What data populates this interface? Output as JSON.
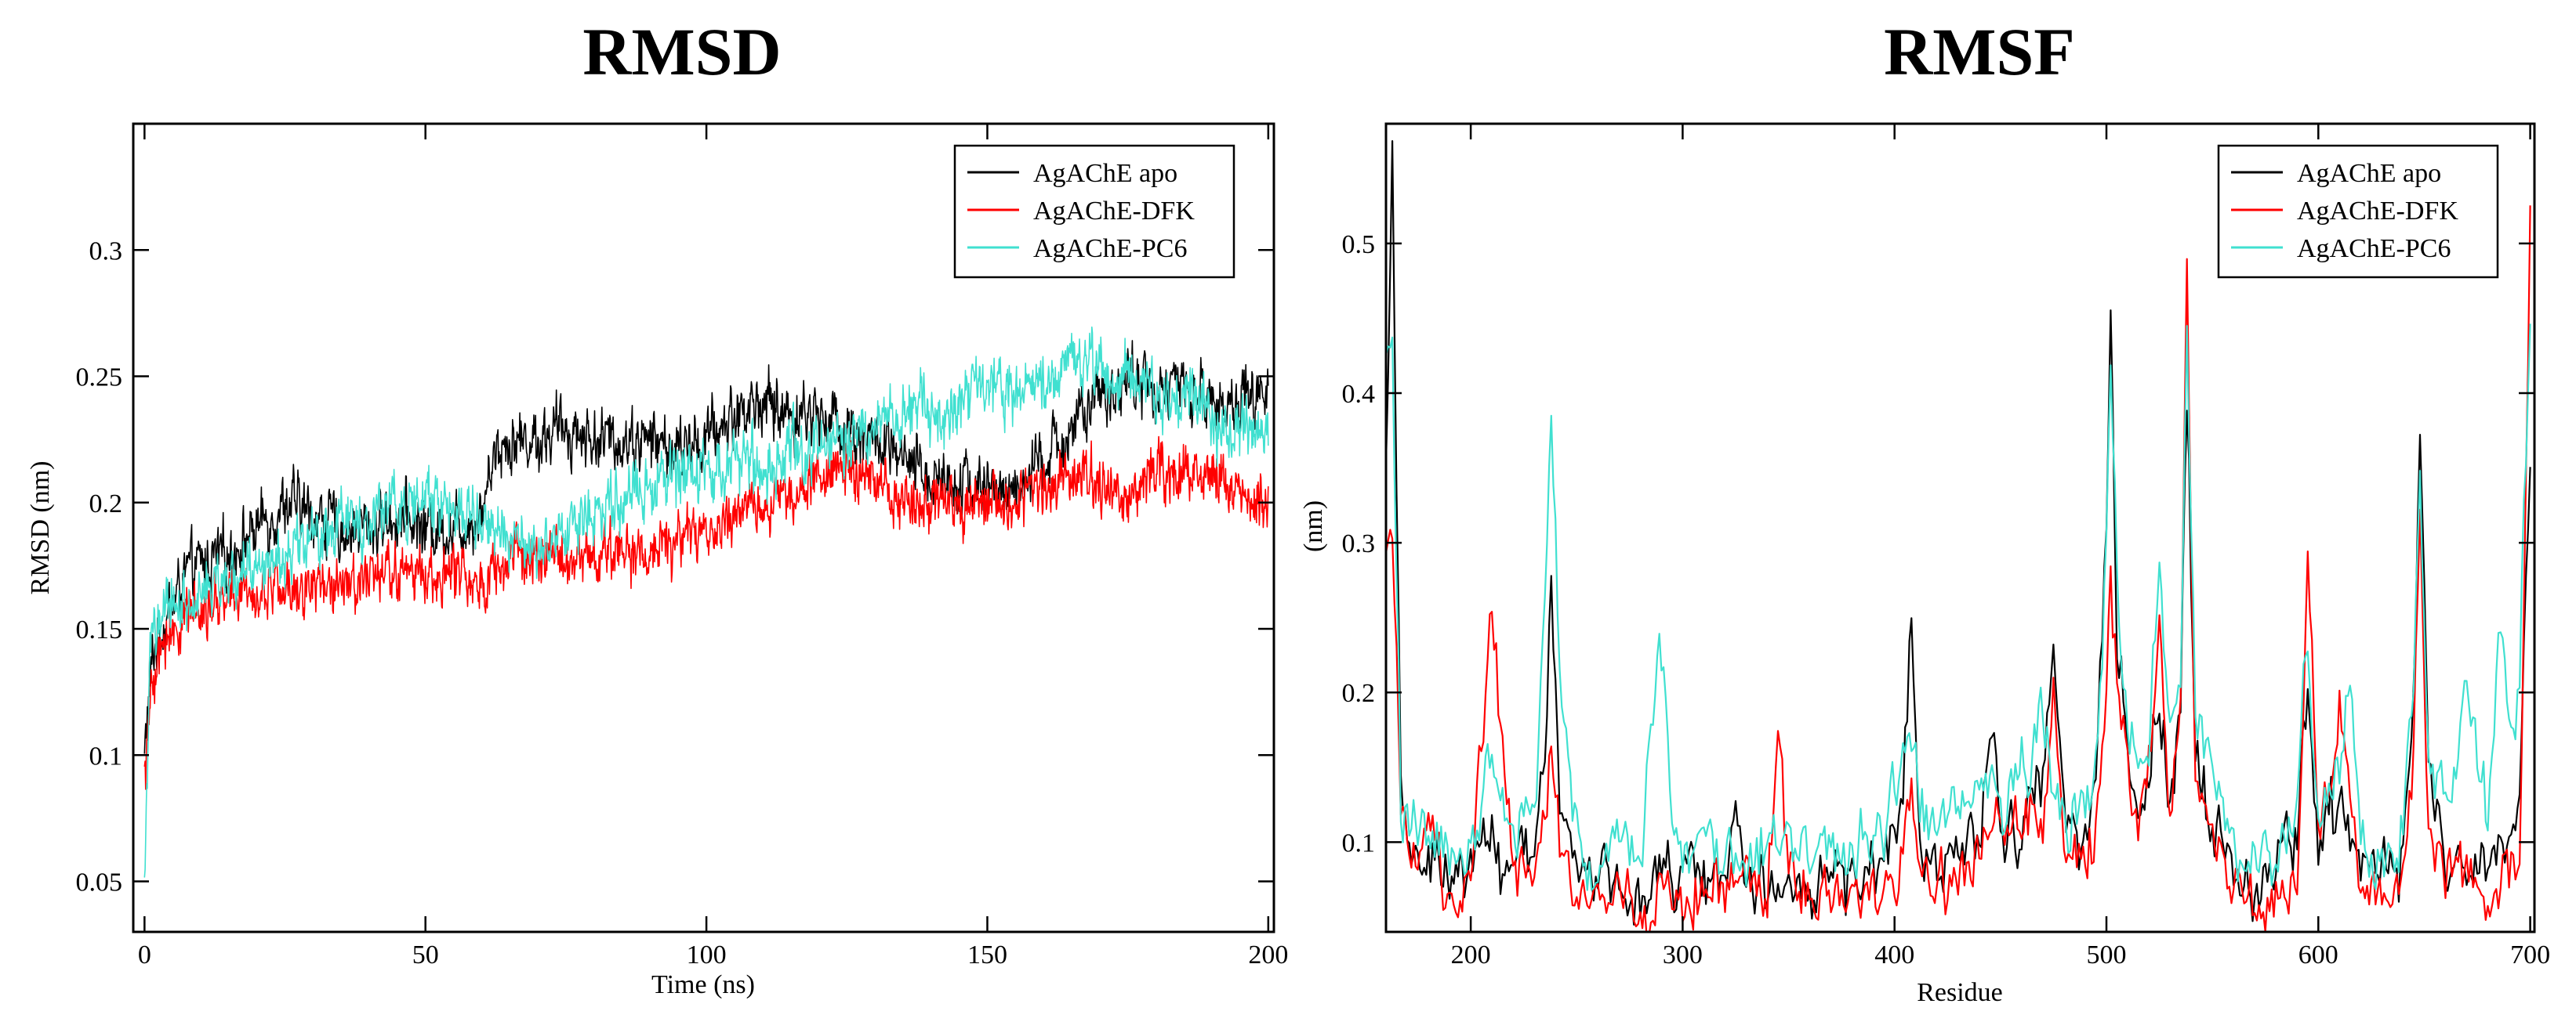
{
  "chart_data": [
    {
      "id": "rmsd",
      "type": "line",
      "title": "RMSD",
      "xlabel": "Time (ns)",
      "ylabel": "RMSD (nm)",
      "xlim": [
        -2,
        201
      ],
      "ylim": [
        0.03,
        0.35
      ],
      "xticks": [
        0,
        50,
        100,
        150,
        200
      ],
      "yticks": [
        0.05,
        0.1,
        0.15,
        0.2,
        0.25,
        0.3
      ],
      "legend_position": "top-right",
      "series": [
        {
          "name": "AgAChE apo",
          "color": "#000000",
          "x": [
            0,
            1,
            2,
            3,
            4,
            5,
            7,
            10,
            15,
            20,
            25,
            30,
            35,
            40,
            45,
            50,
            55,
            60,
            62,
            65,
            70,
            75,
            80,
            85,
            90,
            95,
            100,
            105,
            110,
            115,
            120,
            125,
            130,
            135,
            140,
            145,
            150,
            155,
            160,
            165,
            170,
            175,
            180,
            185,
            190,
            195,
            200
          ],
          "y": [
            0.1,
            0.13,
            0.145,
            0.15,
            0.155,
            0.16,
            0.17,
            0.175,
            0.18,
            0.19,
            0.2,
            0.195,
            0.19,
            0.19,
            0.195,
            0.19,
            0.19,
            0.195,
            0.22,
            0.225,
            0.225,
            0.23,
            0.225,
            0.225,
            0.225,
            0.22,
            0.225,
            0.235,
            0.24,
            0.235,
            0.235,
            0.23,
            0.225,
            0.215,
            0.21,
            0.21,
            0.205,
            0.205,
            0.215,
            0.23,
            0.24,
            0.25,
            0.245,
            0.245,
            0.24,
            0.24,
            0.245
          ],
          "noise": 0.01
        },
        {
          "name": "AgAChE-DFK",
          "color": "#ff0000",
          "x": [
            0,
            1,
            2,
            3,
            4,
            5,
            7,
            10,
            15,
            20,
            25,
            30,
            35,
            40,
            45,
            50,
            55,
            60,
            65,
            70,
            75,
            80,
            85,
            90,
            95,
            100,
            105,
            110,
            115,
            120,
            125,
            130,
            135,
            140,
            145,
            150,
            155,
            160,
            165,
            170,
            175,
            180,
            185,
            190,
            195,
            200
          ],
          "y": [
            0.09,
            0.12,
            0.13,
            0.14,
            0.145,
            0.15,
            0.155,
            0.16,
            0.162,
            0.165,
            0.165,
            0.168,
            0.17,
            0.17,
            0.172,
            0.172,
            0.172,
            0.17,
            0.175,
            0.178,
            0.178,
            0.18,
            0.18,
            0.18,
            0.185,
            0.19,
            0.195,
            0.2,
            0.205,
            0.21,
            0.215,
            0.21,
            0.2,
            0.2,
            0.2,
            0.2,
            0.2,
            0.205,
            0.21,
            0.21,
            0.2,
            0.21,
            0.215,
            0.21,
            0.205,
            0.2
          ],
          "noise": 0.009
        },
        {
          "name": "AgAChE-PC6",
          "color": "#40e0d0",
          "x": [
            0,
            1,
            2,
            3,
            4,
            5,
            7,
            10,
            15,
            20,
            25,
            30,
            35,
            40,
            45,
            50,
            55,
            60,
            65,
            70,
            75,
            80,
            85,
            90,
            95,
            100,
            105,
            110,
            115,
            120,
            125,
            130,
            135,
            140,
            145,
            150,
            155,
            160,
            165,
            170,
            175,
            180,
            185,
            190,
            195,
            200
          ],
          "y": [
            0.05,
            0.14,
            0.15,
            0.155,
            0.157,
            0.16,
            0.16,
            0.165,
            0.17,
            0.175,
            0.18,
            0.185,
            0.19,
            0.195,
            0.2,
            0.2,
            0.2,
            0.19,
            0.185,
            0.18,
            0.19,
            0.195,
            0.2,
            0.205,
            0.21,
            0.21,
            0.215,
            0.215,
            0.22,
            0.22,
            0.225,
            0.23,
            0.235,
            0.235,
            0.24,
            0.25,
            0.24,
            0.245,
            0.255,
            0.255,
            0.25,
            0.245,
            0.24,
            0.235,
            0.23,
            0.23
          ],
          "noise": 0.01
        }
      ]
    },
    {
      "id": "rmsf",
      "type": "line",
      "title": "RMSF",
      "xlabel": "Residue",
      "ylabel": "(nm)",
      "xlim": [
        160,
        702
      ],
      "ylim": [
        0.04,
        0.58
      ],
      "xticks": [
        200,
        300,
        400,
        500,
        600,
        700
      ],
      "yticks": [
        0.1,
        0.2,
        0.3,
        0.4,
        0.5
      ],
      "legend_position": "top-right",
      "series": [
        {
          "name": "AgAChE apo",
          "color": "#000000",
          "x": [
            160,
            163,
            167,
            172,
            180,
            190,
            200,
            210,
            220,
            230,
            236,
            238,
            242,
            250,
            260,
            270,
            280,
            290,
            300,
            310,
            320,
            325,
            330,
            340,
            350,
            360,
            370,
            380,
            390,
            400,
            405,
            408,
            412,
            420,
            430,
            440,
            445,
            450,
            460,
            470,
            475,
            480,
            490,
            495,
            500,
            502,
            505,
            510,
            515,
            520,
            525,
            530,
            535,
            538,
            542,
            548,
            555,
            560,
            570,
            580,
            590,
            595,
            600,
            610,
            620,
            630,
            640,
            645,
            648,
            652,
            660,
            670,
            680,
            690,
            695,
            700
          ],
          "y": [
            0.35,
            0.57,
            0.15,
            0.08,
            0.1,
            0.07,
            0.09,
            0.1,
            0.08,
            0.1,
            0.2,
            0.27,
            0.12,
            0.08,
            0.07,
            0.08,
            0.07,
            0.09,
            0.07,
            0.08,
            0.07,
            0.13,
            0.08,
            0.07,
            0.08,
            0.07,
            0.08,
            0.07,
            0.08,
            0.1,
            0.17,
            0.26,
            0.12,
            0.08,
            0.1,
            0.12,
            0.18,
            0.1,
            0.12,
            0.14,
            0.23,
            0.12,
            0.1,
            0.15,
            0.3,
            0.47,
            0.25,
            0.14,
            0.12,
            0.15,
            0.2,
            0.13,
            0.2,
            0.4,
            0.15,
            0.12,
            0.1,
            0.08,
            0.07,
            0.08,
            0.1,
            0.2,
            0.1,
            0.12,
            0.08,
            0.07,
            0.1,
            0.2,
            0.37,
            0.15,
            0.08,
            0.1,
            0.08,
            0.1,
            0.12,
            0.35
          ],
          "noise": 0.02
        },
        {
          "name": "AgAChE-DFK",
          "color": "#ff0000",
          "x": [
            160,
            163,
            167,
            172,
            180,
            190,
            200,
            210,
            220,
            230,
            236,
            238,
            242,
            250,
            260,
            270,
            280,
            290,
            300,
            310,
            320,
            325,
            330,
            340,
            345,
            350,
            360,
            370,
            380,
            390,
            400,
            408,
            412,
            420,
            430,
            440,
            450,
            460,
            470,
            475,
            480,
            490,
            495,
            500,
            502,
            505,
            510,
            515,
            520,
            525,
            530,
            535,
            538,
            542,
            548,
            555,
            560,
            570,
            580,
            590,
            595,
            600,
            610,
            620,
            630,
            640,
            645,
            648,
            652,
            660,
            670,
            680,
            690,
            695,
            700
          ],
          "y": [
            0.28,
            0.29,
            0.12,
            0.08,
            0.09,
            0.07,
            0.08,
            0.25,
            0.08,
            0.09,
            0.12,
            0.18,
            0.1,
            0.07,
            0.06,
            0.07,
            0.06,
            0.07,
            0.06,
            0.07,
            0.06,
            0.08,
            0.07,
            0.06,
            0.19,
            0.07,
            0.06,
            0.07,
            0.06,
            0.07,
            0.08,
            0.12,
            0.09,
            0.07,
            0.08,
            0.1,
            0.12,
            0.1,
            0.12,
            0.2,
            0.1,
            0.07,
            0.12,
            0.2,
            0.28,
            0.2,
            0.14,
            0.12,
            0.15,
            0.25,
            0.12,
            0.2,
            0.5,
            0.14,
            0.12,
            0.09,
            0.07,
            0.06,
            0.07,
            0.08,
            0.29,
            0.09,
            0.18,
            0.07,
            0.06,
            0.08,
            0.15,
            0.33,
            0.12,
            0.07,
            0.08,
            0.07,
            0.08,
            0.1,
            0.51
          ],
          "noise": 0.018
        },
        {
          "name": "AgAChE-PC6",
          "color": "#40e0d0",
          "x": [
            160,
            163,
            167,
            172,
            180,
            190,
            200,
            210,
            220,
            230,
            236,
            238,
            242,
            250,
            260,
            270,
            280,
            288,
            292,
            296,
            300,
            310,
            320,
            330,
            340,
            350,
            360,
            370,
            380,
            390,
            400,
            408,
            412,
            420,
            430,
            440,
            450,
            460,
            470,
            480,
            490,
            495,
            500,
            502,
            505,
            510,
            515,
            520,
            525,
            530,
            535,
            538,
            542,
            548,
            555,
            560,
            570,
            580,
            590,
            595,
            600,
            610,
            615,
            620,
            630,
            640,
            645,
            648,
            652,
            660,
            670,
            680,
            685,
            690,
            695,
            700
          ],
          "y": [
            0.42,
            0.45,
            0.12,
            0.1,
            0.13,
            0.08,
            0.1,
            0.15,
            0.1,
            0.12,
            0.3,
            0.4,
            0.22,
            0.1,
            0.08,
            0.1,
            0.09,
            0.25,
            0.2,
            0.1,
            0.09,
            0.1,
            0.08,
            0.1,
            0.09,
            0.1,
            0.08,
            0.1,
            0.09,
            0.12,
            0.13,
            0.16,
            0.12,
            0.1,
            0.12,
            0.14,
            0.12,
            0.15,
            0.17,
            0.12,
            0.1,
            0.14,
            0.3,
            0.41,
            0.28,
            0.18,
            0.15,
            0.16,
            0.28,
            0.15,
            0.22,
            0.45,
            0.2,
            0.15,
            0.12,
            0.1,
            0.09,
            0.1,
            0.12,
            0.25,
            0.12,
            0.15,
            0.23,
            0.12,
            0.09,
            0.12,
            0.2,
            0.35,
            0.15,
            0.12,
            0.2,
            0.12,
            0.26,
            0.18,
            0.2,
            0.45
          ],
          "noise": 0.02
        }
      ]
    }
  ]
}
